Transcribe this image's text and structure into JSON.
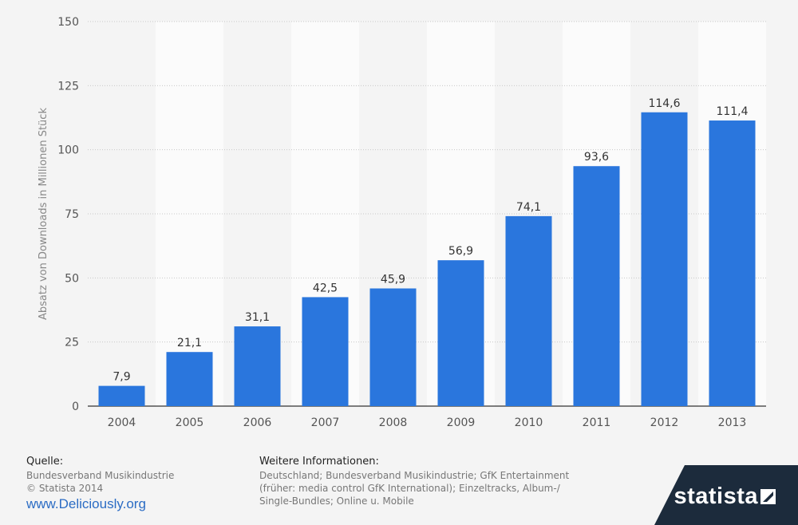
{
  "chart_data": {
    "type": "bar",
    "categories": [
      "2004",
      "2005",
      "2006",
      "2007",
      "2008",
      "2009",
      "2010",
      "2011",
      "2012",
      "2013"
    ],
    "values": [
      7.9,
      21.1,
      31.1,
      42.5,
      45.9,
      56.9,
      74.1,
      93.6,
      114.6,
      111.4
    ],
    "value_labels": [
      "7,9",
      "21,1",
      "31,1",
      "42,5",
      "45,9",
      "56,9",
      "74,1",
      "93,6",
      "114,6",
      "111,4"
    ],
    "title": "",
    "xlabel": "",
    "ylabel": "Absatz von Downloads in Millionen Stück",
    "ylim": [
      0,
      150
    ],
    "yticks": [
      0,
      25,
      50,
      75,
      100,
      125,
      150
    ],
    "grid": true,
    "bar_color": "#2a76dd"
  },
  "footer": {
    "source_heading": "Quelle:",
    "source_lines": [
      "Bundesverband Musikindustrie",
      "© Statista 2014"
    ],
    "link_text": "www.Deliciously.org",
    "info_heading": "Weitere Informationen:",
    "info_lines": [
      "Deutschland; Bundesverband Musikindustrie; GfK Entertainment",
      "(früher: media control GfK International); Einzeltracks, Album-/",
      "Single-Bundles; Online u. Mobile"
    ]
  },
  "brand": {
    "name": "statista",
    "background": "#1c2b3c",
    "icon": "statista-logo-icon"
  }
}
